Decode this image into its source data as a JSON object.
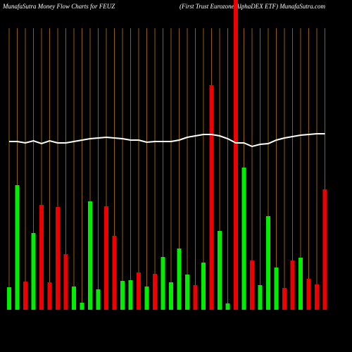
{
  "chart_data": {
    "type": "bar-line",
    "title": "MunafaSutra  Money Flow  Charts for FEUZ",
    "subtitle": "(First Trust Eurozone  AlphaDEX  ETF) MunafaSutra.com",
    "categories": [
      null,
      null,
      null,
      null,
      null,
      null,
      null,
      null,
      null,
      null,
      null,
      null,
      null,
      null,
      null,
      null,
      null,
      null,
      null,
      null,
      null,
      null,
      null,
      null,
      null,
      null,
      null,
      null,
      null,
      null,
      null,
      null,
      null,
      null,
      null,
      null,
      null,
      null,
      null,
      null
    ],
    "ylim": [
      0,
      440
    ],
    "series": [
      {
        "type": "bar",
        "values": [
          32,
          177,
          40,
          109,
          149,
          39,
          146,
          79,
          33,
          10,
          154,
          29,
          147,
          105,
          41,
          42,
          53,
          33,
          51,
          75,
          39,
          87,
          50,
          35,
          67,
          319,
          112,
          9,
          440,
          202,
          70,
          35,
          133,
          60,
          31,
          70,
          74,
          44,
          36,
          171
        ],
        "colors": [
          "#00ee00",
          "#00ee00",
          "#ee0000",
          "#00ee00",
          "#ee0000",
          "#ee0000",
          "#ee0000",
          "#ee0000",
          "#00ee00",
          "#00ee00",
          "#00ee00",
          "#00ee00",
          "#ee0000",
          "#ee0000",
          "#00ee00",
          "#00ee00",
          "#ee0000",
          "#00ee00",
          "#ee0000",
          "#00ee00",
          "#00ee00",
          "#00ee00",
          "#00ee00",
          "#ee0000",
          "#00ee00",
          "#ee0000",
          "#00ee00",
          "#00ee00",
          "#ee0000",
          "#00ee00",
          "#ee0000",
          "#00ee00",
          "#00ee00",
          "#00ee00",
          "#ee0000",
          "#ee0000",
          "#00ee00",
          "#ee0000",
          "#ee0000",
          "#ee0000"
        ]
      },
      {
        "type": "line",
        "color": "#ffffff",
        "values": [
          239,
          239,
          237,
          240,
          236,
          240,
          237,
          237,
          239,
          241,
          243,
          244,
          245,
          244,
          243,
          241,
          241,
          238,
          239,
          239,
          239,
          241,
          245,
          247,
          249,
          249,
          247,
          243,
          237,
          237,
          232,
          235,
          236,
          241,
          244,
          246,
          248,
          249,
          250,
          250
        ]
      }
    ],
    "gridline_color": "#b8770b"
  }
}
